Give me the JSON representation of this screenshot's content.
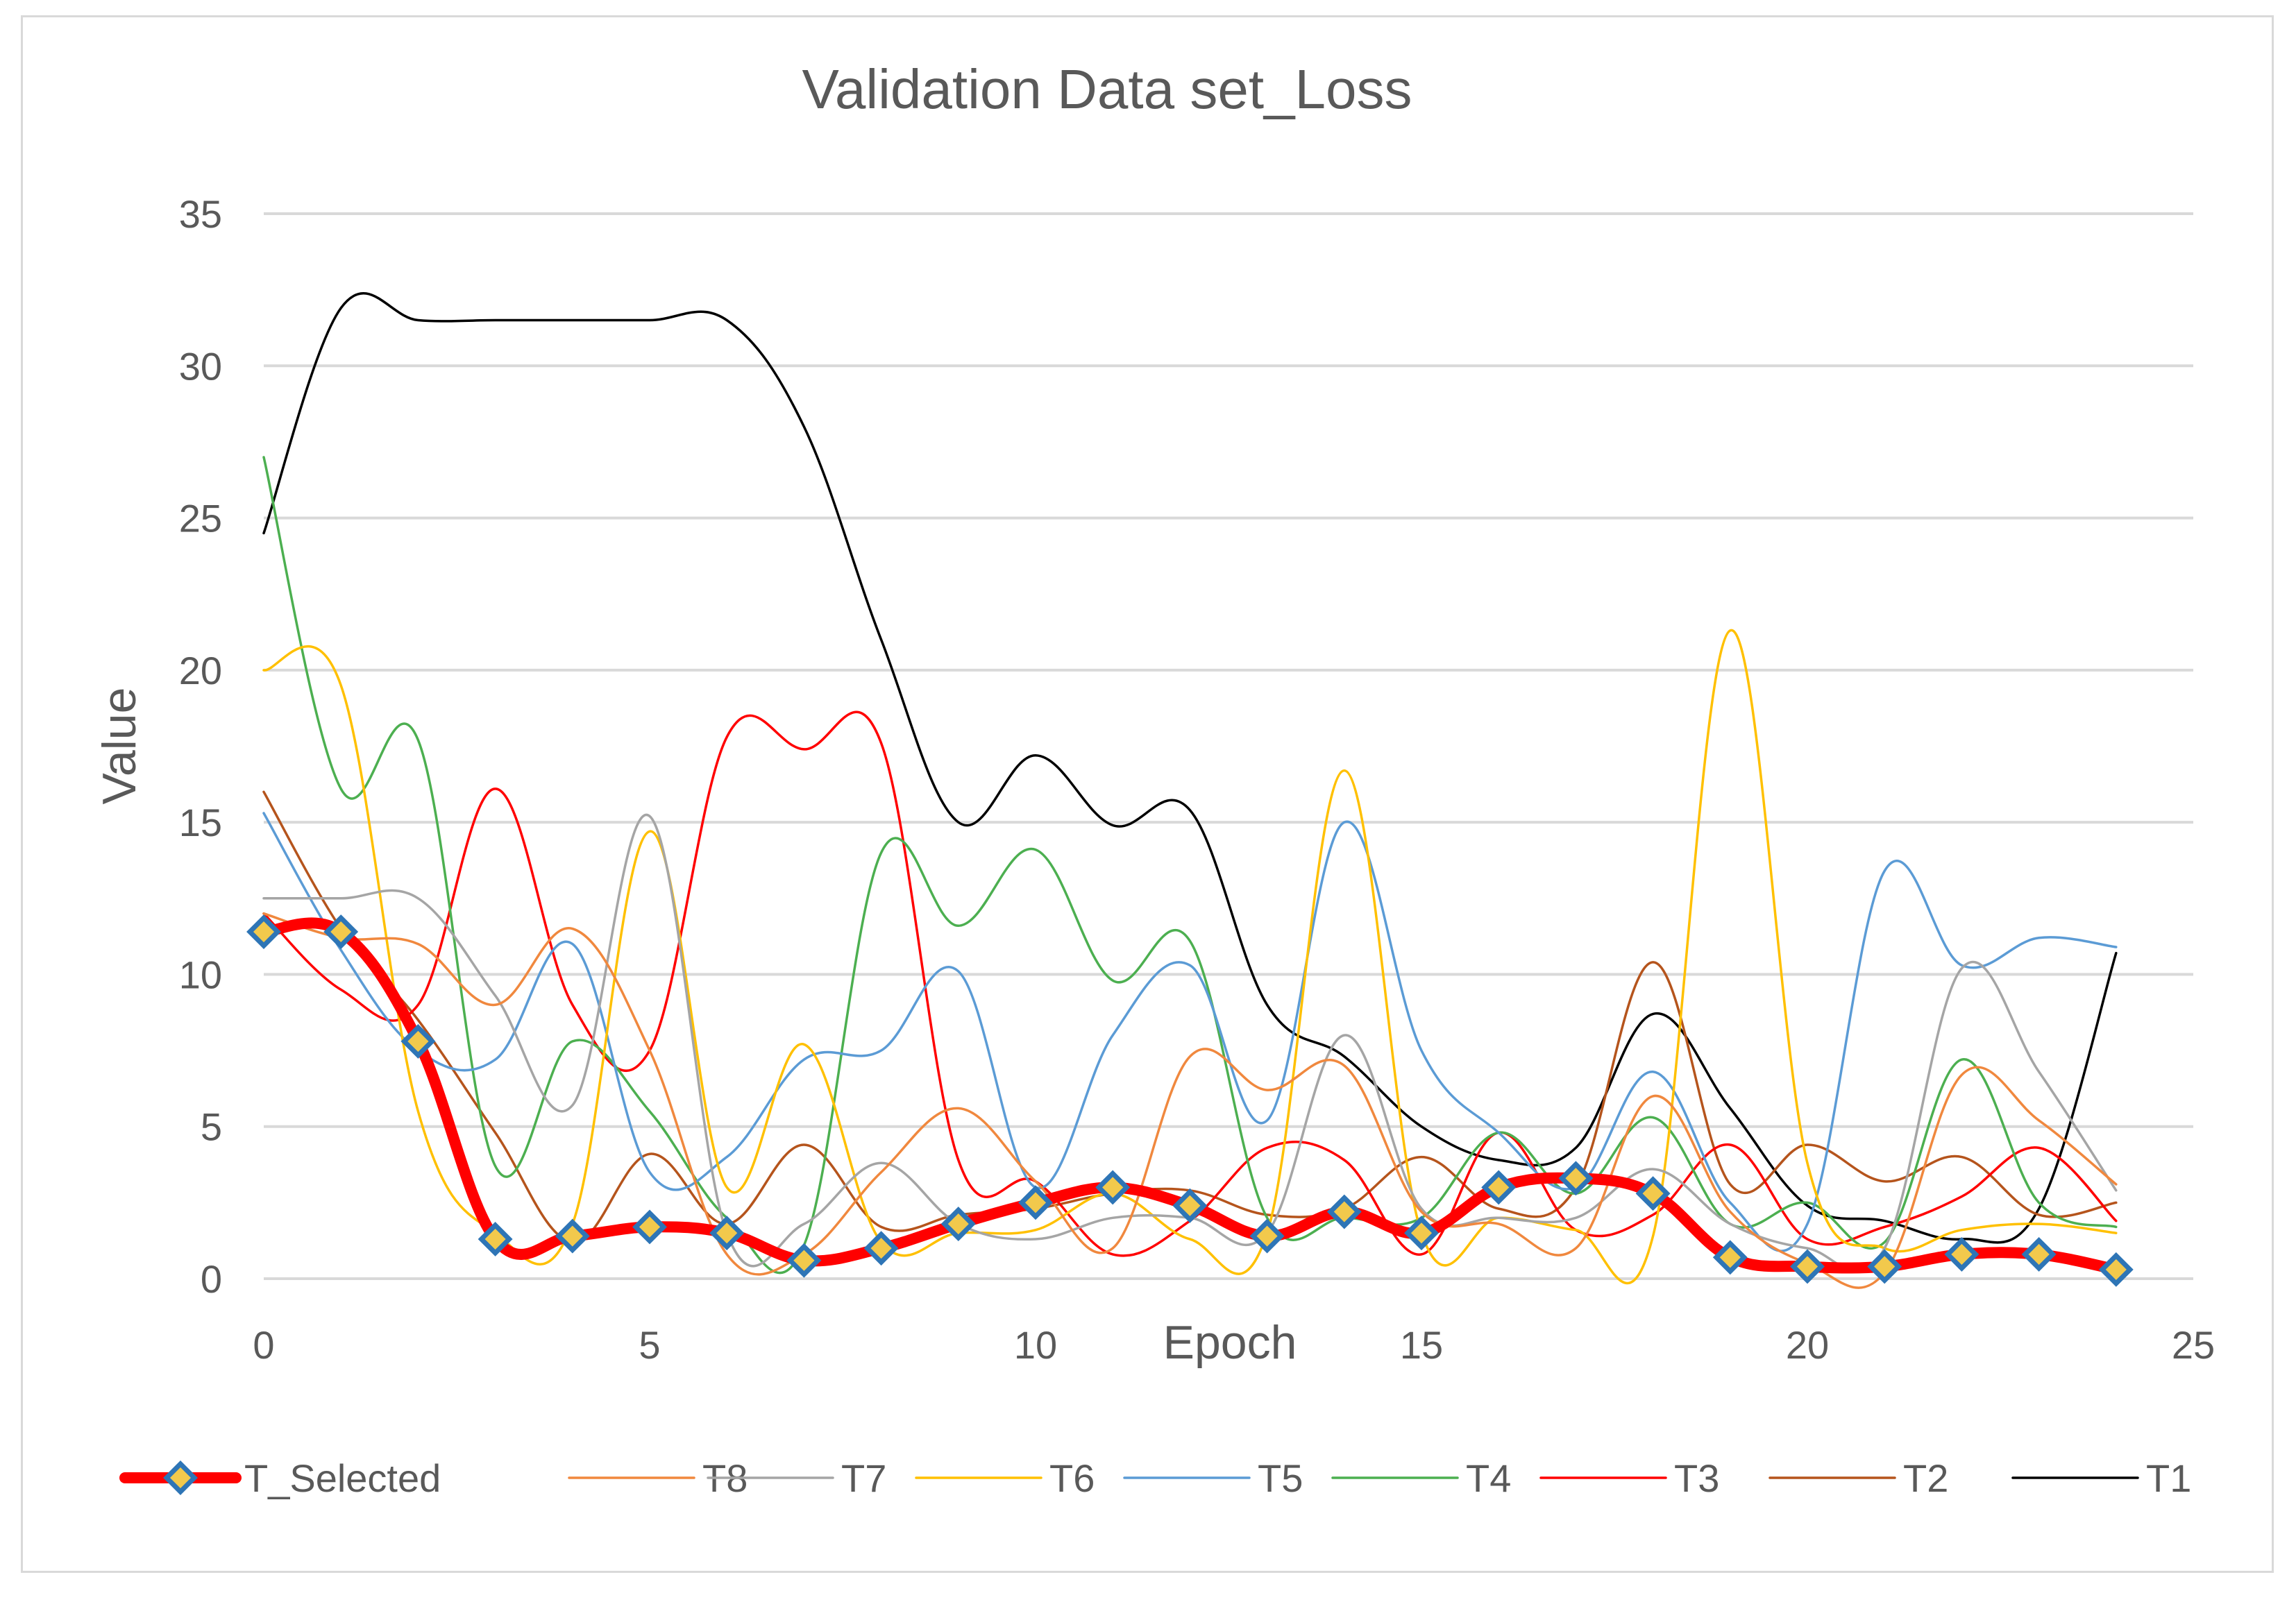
{
  "chart_data": {
    "type": "line",
    "title": "Validation Data set_Loss",
    "xlabel": "Epoch",
    "ylabel": "Value",
    "xlim": [
      0,
      25
    ],
    "ylim": [
      0,
      35
    ],
    "x_ticks": [
      0,
      5,
      10,
      15,
      20,
      25
    ],
    "y_ticks": [
      0,
      5,
      10,
      15,
      20,
      25,
      30,
      35
    ],
    "grid": "horizontal",
    "legend_position": "bottom",
    "x": [
      0,
      1,
      2,
      3,
      4,
      5,
      6,
      7,
      8,
      9,
      10,
      11,
      12,
      13,
      14,
      15,
      16,
      17,
      18,
      19,
      20,
      21,
      22,
      23,
      24
    ],
    "series": [
      {
        "name": "T_Selected",
        "color": "#ff0000",
        "marker": "diamond",
        "marker_fill": "#f2c94c",
        "marker_edge": "#2e75b6",
        "values": [
          11.4,
          11.4,
          7.8,
          1.3,
          1.4,
          1.7,
          1.5,
          0.6,
          1.0,
          1.8,
          2.5,
          3.0,
          2.4,
          1.4,
          2.2,
          1.5,
          3.0,
          3.3,
          2.8,
          0.7,
          0.4,
          0.4,
          0.8,
          0.8,
          0.3
        ]
      },
      {
        "name": "T8",
        "color": "#f0883e",
        "values": [
          12.0,
          11.2,
          11.0,
          9.0,
          11.5,
          7.5,
          0.8,
          0.8,
          3.5,
          5.6,
          3.2,
          1.0,
          7.3,
          6.2,
          7.0,
          2.2,
          1.8,
          1.0,
          6.0,
          2.2,
          0.5,
          0.2,
          6.7,
          5.2,
          3.1
        ]
      },
      {
        "name": "T7",
        "color": "#a5a5a5",
        "values": [
          12.5,
          12.5,
          12.5,
          9.3,
          5.7,
          15.2,
          1.5,
          1.8,
          3.8,
          1.8,
          1.3,
          2.0,
          2.0,
          1.5,
          8.0,
          2.3,
          2.0,
          2.0,
          3.6,
          1.8,
          1.0,
          1.0,
          10.2,
          6.8,
          2.9
        ]
      },
      {
        "name": "T6",
        "color": "#ffc000",
        "values": [
          20.0,
          19.5,
          5.5,
          1.5,
          1.8,
          14.7,
          3.0,
          7.7,
          1.2,
          1.5,
          1.6,
          2.8,
          1.3,
          1.5,
          16.7,
          1.5,
          2.0,
          1.6,
          1.4,
          21.3,
          3.8,
          1.0,
          1.6,
          1.8,
          1.5
        ]
      },
      {
        "name": "T5",
        "color": "#5b9bd5",
        "values": [
          15.3,
          10.8,
          7.5,
          7.2,
          11.0,
          3.5,
          4.0,
          7.2,
          7.5,
          10.1,
          3.0,
          8.0,
          10.3,
          5.2,
          15.0,
          7.5,
          4.8,
          3.0,
          6.8,
          2.5,
          1.8,
          13.4,
          10.3,
          11.2,
          10.9
        ]
      },
      {
        "name": "T4",
        "color": "#4caf50",
        "values": [
          27.0,
          16.1,
          17.7,
          3.7,
          7.8,
          5.5,
          2.0,
          1.1,
          14.0,
          11.6,
          14.1,
          9.8,
          11.1,
          2.0,
          2.0,
          2.0,
          4.8,
          2.8,
          5.3,
          1.8,
          2.5,
          1.2,
          7.2,
          2.5,
          1.7
        ]
      },
      {
        "name": "T3",
        "color": "#ff0000",
        "values": [
          12.0,
          9.5,
          9.0,
          16.1,
          9.0,
          7.5,
          17.8,
          17.4,
          17.6,
          3.9,
          3.2,
          0.8,
          1.9,
          4.3,
          3.9,
          0.8,
          4.8,
          1.6,
          2.1,
          4.4,
          1.3,
          1.7,
          2.7,
          4.3,
          1.9
        ]
      },
      {
        "name": "T2",
        "color": "#b5541c",
        "values": [
          16.0,
          11.5,
          8.5,
          4.8,
          1.2,
          4.1,
          1.8,
          4.4,
          1.7,
          2.1,
          2.3,
          2.8,
          2.9,
          2.1,
          2.3,
          4.0,
          2.3,
          3.0,
          10.4,
          3.1,
          4.4,
          3.2,
          4.0,
          2.1,
          2.5
        ]
      },
      {
        "name": "T1",
        "color": "#000000",
        "values": [
          24.5,
          31.9,
          31.5,
          31.5,
          31.5,
          31.5,
          31.5,
          28.0,
          21.0,
          15.0,
          17.2,
          14.9,
          15.4,
          9.0,
          7.3,
          5.0,
          3.9,
          4.3,
          8.7,
          5.6,
          2.4,
          1.9,
          1.3,
          2.3,
          10.7
        ]
      }
    ],
    "legend_order": [
      "T_Selected",
      "T8",
      "T7",
      "T6",
      "T5",
      "T4",
      "T3",
      "T2",
      "T1"
    ]
  }
}
